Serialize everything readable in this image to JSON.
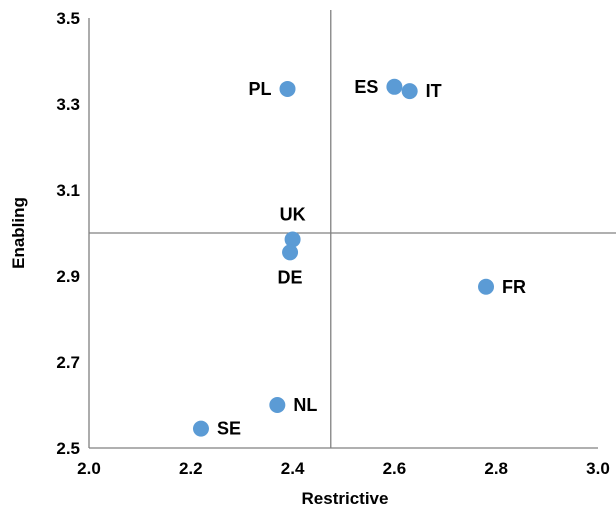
{
  "chart_data": {
    "type": "scatter",
    "title": "",
    "xlabel": "Restrictive",
    "ylabel": "Enabling",
    "xlim": [
      2.0,
      3.0
    ],
    "ylim": [
      2.5,
      3.5
    ],
    "x_ticks": [
      {
        "value": 2.0,
        "label": "2.0"
      },
      {
        "value": 2.2,
        "label": "2.2"
      },
      {
        "value": 2.4,
        "label": "2.4"
      },
      {
        "value": 2.6,
        "label": "2.6"
      },
      {
        "value": 2.8,
        "label": "2.8"
      },
      {
        "value": 3.0,
        "label": "3.0"
      }
    ],
    "y_ticks": [
      {
        "value": 2.5,
        "label": "2.5"
      },
      {
        "value": 2.7,
        "label": "2.7"
      },
      {
        "value": 2.9,
        "label": "2.9"
      },
      {
        "value": 3.1,
        "label": "3.1"
      },
      {
        "value": 3.3,
        "label": "3.3"
      },
      {
        "value": 3.5,
        "label": "3.5"
      }
    ],
    "reference_lines": {
      "x": 2.475,
      "y": 3.0
    },
    "grid": false,
    "legend": "none",
    "marker_color": "#5b9bd5",
    "points": [
      {
        "label": "PL",
        "x": 2.39,
        "y": 3.335,
        "label_side": "left"
      },
      {
        "label": "ES",
        "x": 2.6,
        "y": 3.34,
        "label_side": "left"
      },
      {
        "label": "IT",
        "x": 2.63,
        "y": 3.33,
        "label_side": "right"
      },
      {
        "label": "UK",
        "x": 2.4,
        "y": 2.985,
        "label_side": "above"
      },
      {
        "label": "DE",
        "x": 2.395,
        "y": 2.955,
        "label_side": "below"
      },
      {
        "label": "FR",
        "x": 2.78,
        "y": 2.875,
        "label_side": "right"
      },
      {
        "label": "NL",
        "x": 2.37,
        "y": 2.6,
        "label_side": "right"
      },
      {
        "label": "SE",
        "x": 2.22,
        "y": 2.545,
        "label_side": "right"
      }
    ]
  }
}
